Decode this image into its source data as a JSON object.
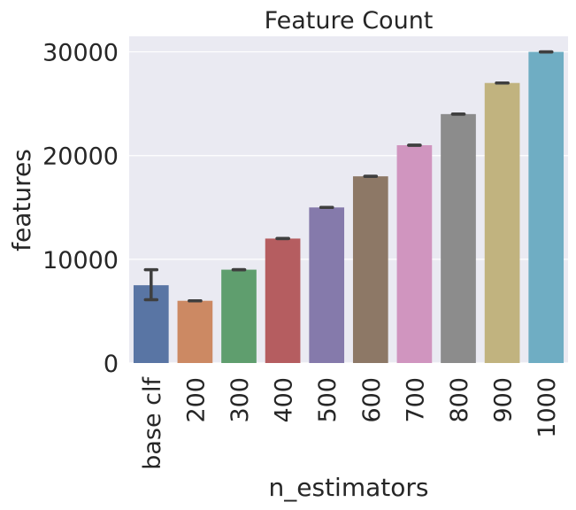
{
  "chart_data": {
    "type": "bar",
    "title": "Feature Count",
    "xlabel": "n_estimators",
    "ylabel": "features",
    "categories": [
      "base clf",
      "200",
      "300",
      "400",
      "500",
      "600",
      "700",
      "800",
      "900",
      "1000"
    ],
    "values": [
      7500,
      6000,
      9000,
      12000,
      15000,
      18000,
      21000,
      24000,
      27000,
      30000
    ],
    "error_bars": [
      {
        "low": 6100,
        "high": 9000
      },
      {
        "low": 6000,
        "high": 6000
      },
      {
        "low": 9000,
        "high": 9000
      },
      {
        "low": 12000,
        "high": 12000
      },
      {
        "low": 15000,
        "high": 15000
      },
      {
        "low": 18000,
        "high": 18000
      },
      {
        "low": 21000,
        "high": 21000
      },
      {
        "low": 24000,
        "high": 24000
      },
      {
        "low": 27000,
        "high": 27000
      },
      {
        "low": 30000,
        "high": 30000
      }
    ],
    "colors": [
      "#5975a4",
      "#cc8963",
      "#5f9e6e",
      "#b55d60",
      "#857aab",
      "#8d7866",
      "#d095bf",
      "#8c8c8c",
      "#c1b37f",
      "#6fadc3"
    ],
    "ylim": [
      0,
      31500
    ],
    "yticks": [
      0,
      10000,
      20000,
      30000
    ],
    "ytick_labels": [
      "0",
      "10000",
      "20000",
      "30000"
    ],
    "grid": true,
    "background": "#eaeaf2",
    "errorbar_color": "#3f3f3f"
  }
}
